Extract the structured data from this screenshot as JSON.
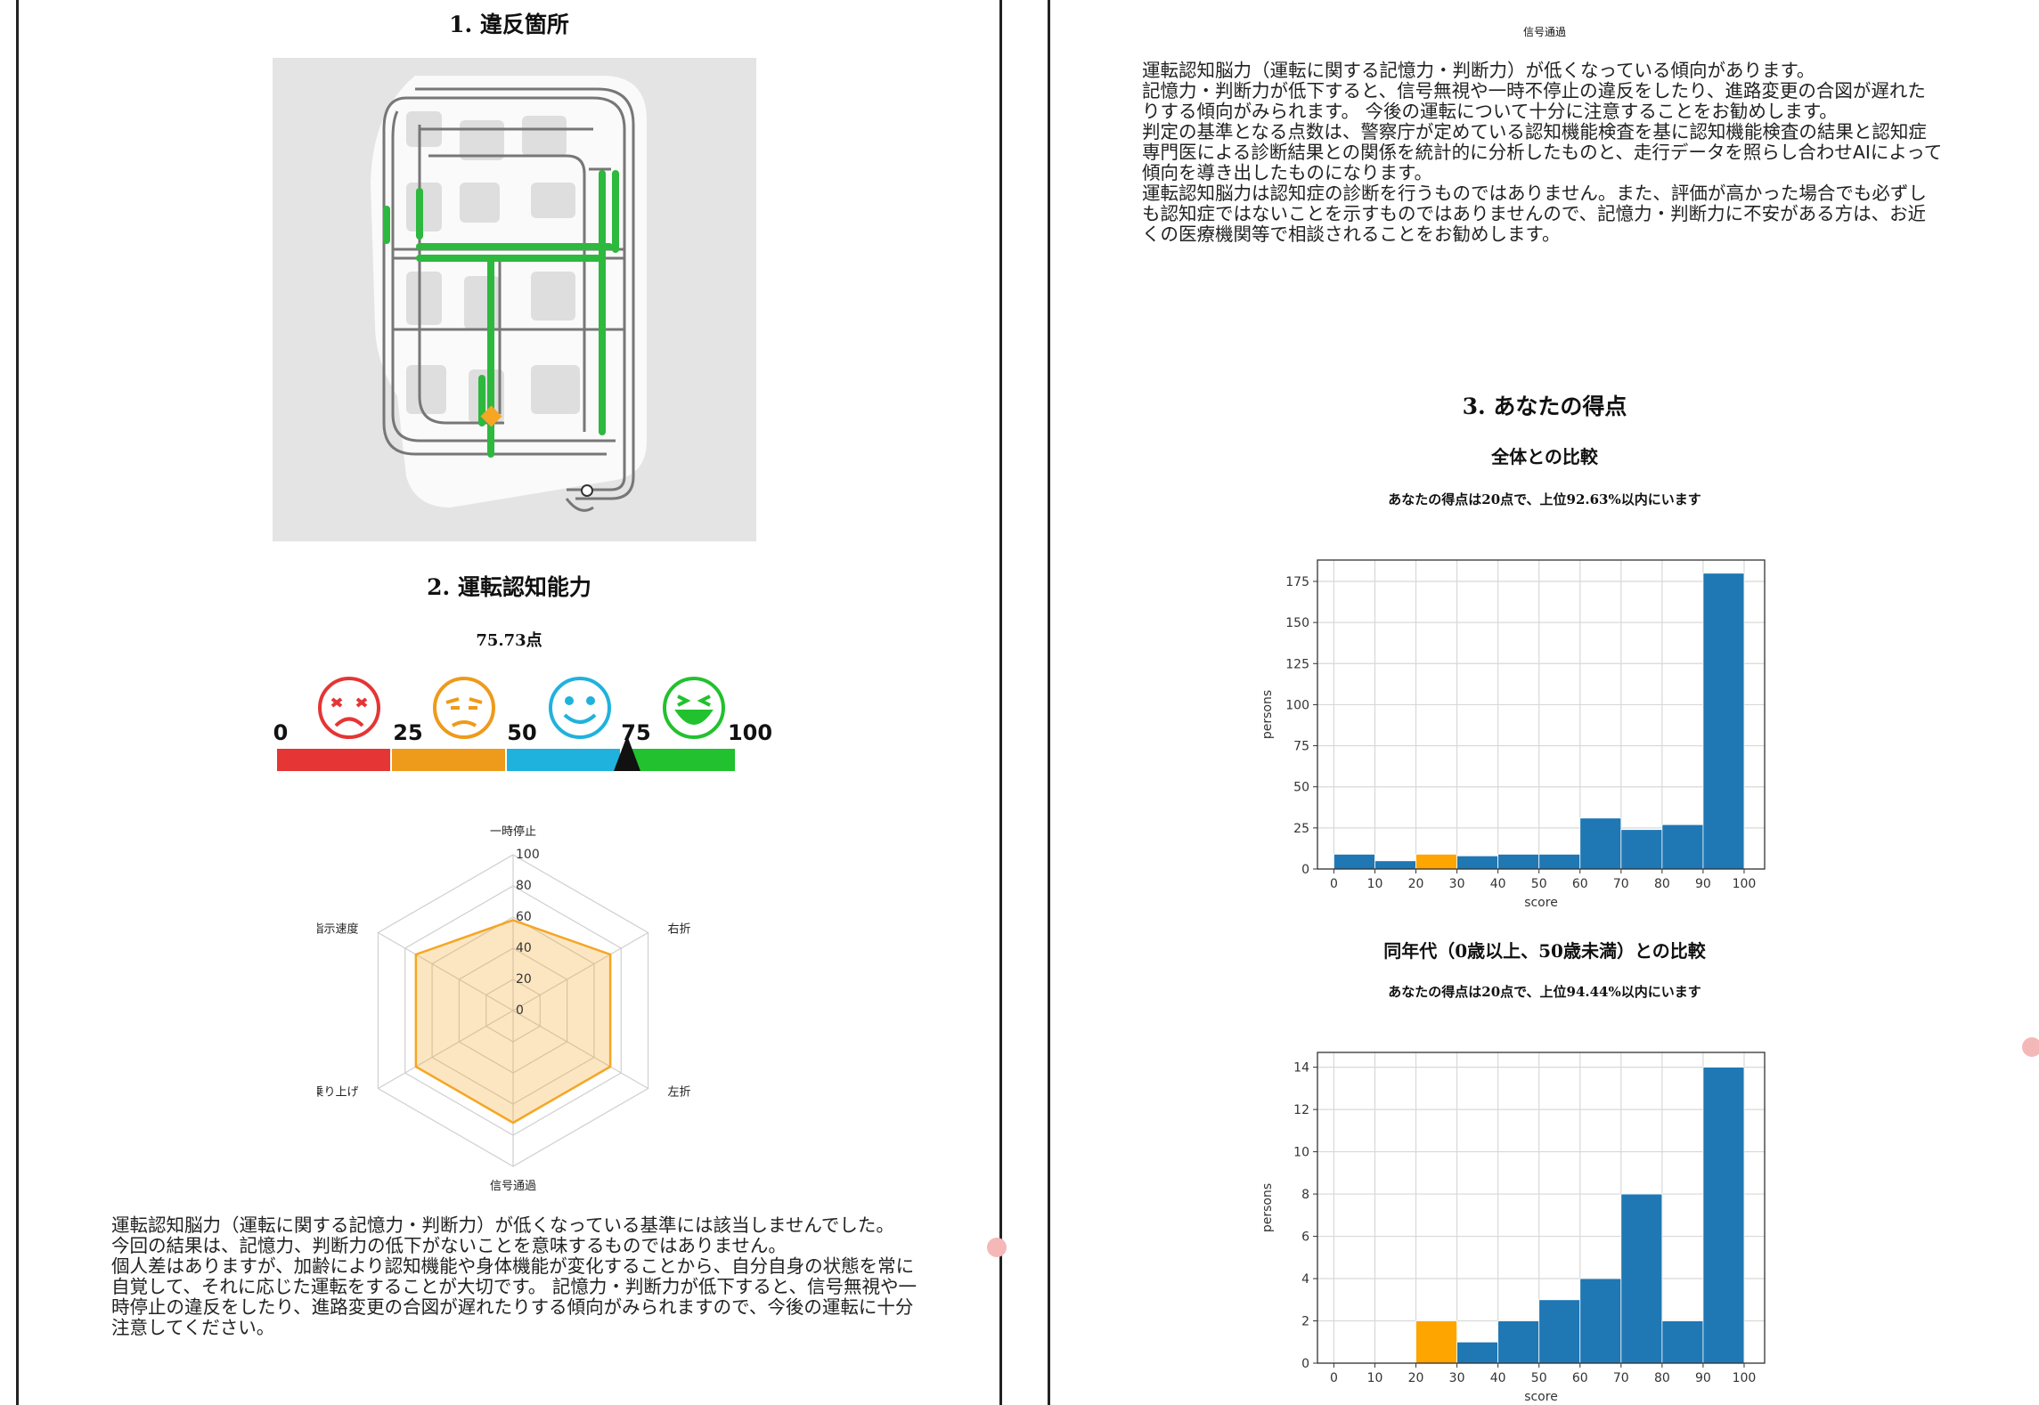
{
  "left": {
    "section1_title": "1. 違反箇所",
    "section2_title": "2. 運転認知能力",
    "score_text": "75.73点",
    "gauge": {
      "ticks": [
        "0",
        "25",
        "50",
        "75",
        "100"
      ],
      "segment_colors": [
        "#e53535",
        "#ee9a1b",
        "#1fb2dc",
        "#22c12f"
      ],
      "marker_value": 75.73,
      "faces": [
        "angry-face-icon",
        "frown-face-icon",
        "smile-face-icon",
        "laugh-face-icon"
      ]
    },
    "radar": {
      "axes": [
        "一時停止",
        "右折",
        "左折",
        "信号通過",
        "段差乗り上げ",
        "指示速度"
      ],
      "rings": [
        "0",
        "20",
        "40",
        "60",
        "80",
        "100"
      ],
      "values": [
        58,
        72,
        72,
        72,
        72,
        72
      ],
      "color": "#f5a623"
    },
    "paragraph": [
      "運転認知脳力（運転に関する記憶力・判断力）が低くなっている基準には該当しませんでした。",
      "今回の結果は、記憶力、判断力の低下がないことを意味するものではありません。",
      "個人差はありますが、加齢により認知機能や身体機能が変化することから、自分自身の状態を常に自覚して、それに応じた運転をすることが大切です。 記憶力・判断力が低下すると、信号無視や一時停止の違反をしたり、進路変更の合図が遅れたりする傾向がみられますので、今後の運転に十分注意してください。"
    ]
  },
  "right": {
    "top_label": "信号通過",
    "paragraph": [
      "運転認知脳力（運転に関する記憶力・判断力）が低くなっている傾向があります。",
      "記憶力・判断力が低下すると、信号無視や一時不停止の違反をしたり、進路変更の合図が遅れたりする傾向がみられます。 今後の運転について十分に注意することをお勧めします。",
      "判定の基準となる点数は、警察庁が定めている認知機能検査を基に認知機能検査の結果と認知症専門医による診断結果との関係を統計的に分析したものと、走行データを照らし合わせAIによって傾向を導き出したものになります。",
      "運転認知脳力は認知症の診断を行うものではありません。また、評価が高かった場合でも必ずしも認知症ではないことを示すものではありませんので、記憶力・判断力に不安がある方は、お近くの医療機関等で相談されることをお勧めします。"
    ],
    "section3_title": "3. あなたの得点",
    "chart1_title": "全体との比較",
    "chart1_caption": "あなたの得点は20点で、上位92.63%以内にいます",
    "chart2_title": "同年代（0歳以上、50歳未満）との比較",
    "chart2_caption": "あなたの得点は20点で、上位94.44%以内にいます"
  },
  "chart_data": [
    {
      "type": "bar",
      "title": "全体との比較",
      "xlabel": "score",
      "ylabel": "persons",
      "bin_edges": [
        0,
        10,
        20,
        30,
        40,
        50,
        60,
        70,
        80,
        90,
        100
      ],
      "values": [
        9,
        5,
        9,
        8,
        9,
        9,
        31,
        24,
        27,
        180
      ],
      "highlight_bin": 2,
      "xticks": [
        "0",
        "10",
        "20",
        "30",
        "40",
        "50",
        "60",
        "70",
        "80",
        "90",
        "100"
      ],
      "yticks": [
        "0",
        "25",
        "50",
        "75",
        "100",
        "125",
        "150",
        "175"
      ],
      "ylim": [
        0,
        188
      ],
      "grid": true,
      "bar_color": "#1f77b4",
      "highlight_color": "#ffa500"
    },
    {
      "type": "bar",
      "title": "同年代（0歳以上、50歳未満）との比較",
      "xlabel": "score",
      "ylabel": "persons",
      "bin_edges": [
        0,
        10,
        20,
        30,
        40,
        50,
        60,
        70,
        80,
        90,
        100
      ],
      "values": [
        0,
        0,
        2,
        1,
        2,
        3,
        4,
        8,
        2,
        14
      ],
      "highlight_bin": 2,
      "xticks": [
        "0",
        "10",
        "20",
        "30",
        "40",
        "50",
        "60",
        "70",
        "80",
        "90",
        "100"
      ],
      "yticks": [
        "0",
        "2",
        "4",
        "6",
        "8",
        "10",
        "12",
        "14"
      ],
      "ylim": [
        0,
        14.7
      ],
      "grid": true,
      "bar_color": "#1f77b4",
      "highlight_color": "#ffa500"
    }
  ]
}
